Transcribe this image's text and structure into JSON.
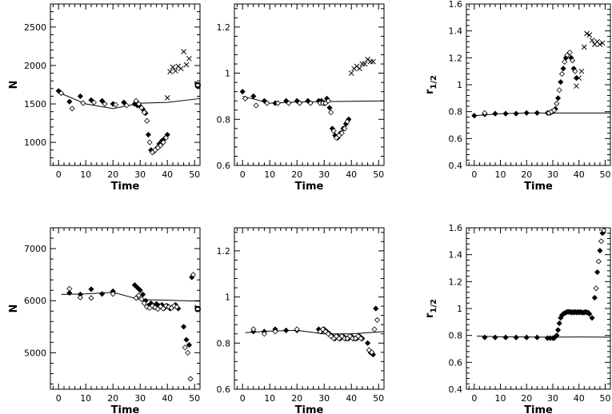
{
  "chart_data": [
    {
      "type": "scatter",
      "xlabel": "Time",
      "ylabel": "N",
      "xlim": [
        -3,
        52
      ],
      "ylim": [
        700,
        2800
      ],
      "xticks": [
        0,
        10,
        20,
        30,
        40,
        50
      ],
      "yticks": [
        1000,
        1500,
        2000,
        2500
      ],
      "yticklabels": [
        "1000",
        "1500",
        "2000",
        "2500"
      ],
      "series": [
        {
          "marker": "line",
          "x": [
            0,
            10,
            20,
            30,
            40,
            52
          ],
          "y": [
            1650,
            1500,
            1440,
            1510,
            1520,
            1570
          ]
        },
        {
          "marker": "filled-diamond",
          "x": [
            0,
            4,
            8,
            12,
            16,
            20,
            24,
            28,
            29,
            30,
            31,
            32,
            33,
            34,
            35,
            36,
            37,
            38,
            39,
            40
          ],
          "y": [
            1670,
            1530,
            1600,
            1550,
            1540,
            1500,
            1520,
            1500,
            1480,
            1470,
            1430,
            1380,
            1100,
            900,
            880,
            920,
            980,
            1020,
            1050,
            1100
          ]
        },
        {
          "marker": "open-diamond",
          "x": [
            1,
            5,
            9,
            13,
            17,
            21,
            25,
            28.5,
            29.5,
            30.5,
            31.5,
            32.5,
            33.5,
            34.5,
            35.5,
            36.5,
            37.5,
            38.5,
            39.5
          ],
          "y": [
            1640,
            1440,
            1510,
            1520,
            1500,
            1490,
            1480,
            1540,
            1500,
            1450,
            1390,
            1280,
            1000,
            870,
            900,
            930,
            960,
            1000,
            1060
          ]
        },
        {
          "marker": "cross",
          "x": [
            40,
            41,
            42,
            43,
            44,
            45,
            46,
            47,
            48
          ],
          "y": [
            1580,
            1920,
            1980,
            1930,
            1990,
            1960,
            2180,
            2010,
            2090
          ]
        }
      ]
    },
    {
      "type": "scatter",
      "xlabel": "Time",
      "ylabel": "σ",
      "xlim": [
        -3,
        52
      ],
      "ylim": [
        0.6,
        1.3
      ],
      "xticks": [
        0,
        10,
        20,
        30,
        40,
        50
      ],
      "yticks": [
        0.6,
        0.8,
        1,
        1.2
      ],
      "yticklabels": [
        "0.6",
        "0.8",
        "1",
        "1.2"
      ],
      "series": [
        {
          "marker": "line",
          "x": [
            0,
            10,
            20,
            30,
            40,
            52
          ],
          "y": [
            0.9,
            0.87,
            0.875,
            0.877,
            0.878,
            0.88
          ]
        },
        {
          "marker": "filled-diamond",
          "x": [
            0,
            4,
            8,
            12,
            16,
            20,
            24,
            28,
            29,
            30,
            31,
            32,
            33,
            34,
            35,
            36,
            37,
            38,
            39
          ],
          "y": [
            0.92,
            0.9,
            0.88,
            0.87,
            0.88,
            0.88,
            0.88,
            0.88,
            0.88,
            0.87,
            0.89,
            0.85,
            0.76,
            0.73,
            0.72,
            0.74,
            0.76,
            0.78,
            0.8
          ]
        },
        {
          "marker": "open-diamond",
          "x": [
            1,
            5,
            9,
            13,
            17,
            21,
            25,
            28.5,
            29.5,
            30.5,
            31.5,
            32.5,
            33.5,
            34.5,
            35.5,
            36.5,
            37.5,
            38.5
          ],
          "y": [
            0.89,
            0.86,
            0.87,
            0.87,
            0.87,
            0.87,
            0.87,
            0.87,
            0.87,
            0.87,
            0.88,
            0.83,
            0.75,
            0.72,
            0.73,
            0.74,
            0.76,
            0.79
          ]
        },
        {
          "marker": "cross",
          "x": [
            40,
            41,
            42,
            43,
            44,
            45,
            46,
            47,
            48
          ],
          "y": [
            1.0,
            1.02,
            1.03,
            1.02,
            1.04,
            1.04,
            1.06,
            1.05,
            1.05
          ]
        }
      ]
    },
    {
      "type": "scatter",
      "xlabel": "Time",
      "ylabel": "r1/2",
      "xlim": [
        -3,
        52
      ],
      "ylim": [
        0.4,
        1.6
      ],
      "xticks": [
        0,
        10,
        20,
        30,
        40,
        50
      ],
      "yticks": [
        0.4,
        0.6,
        0.8,
        1,
        1.2,
        1.4,
        1.6
      ],
      "yticklabels": [
        "0.4",
        "0.6",
        "0.8",
        "1",
        "1.2",
        "1.4",
        "1.6"
      ],
      "series": [
        {
          "marker": "line",
          "x": [
            0,
            10,
            20,
            30,
            40,
            52
          ],
          "y": [
            0.77,
            0.785,
            0.79,
            0.79,
            0.79,
            0.79
          ]
        },
        {
          "marker": "filled-diamond",
          "x": [
            0,
            4,
            8,
            12,
            16,
            20,
            24,
            28,
            29,
            30,
            31,
            32,
            33,
            34,
            35,
            36,
            37,
            38,
            39
          ],
          "y": [
            0.77,
            0.78,
            0.785,
            0.785,
            0.785,
            0.79,
            0.79,
            0.79,
            0.79,
            0.8,
            0.82,
            0.9,
            1.02,
            1.12,
            1.2,
            1.23,
            1.2,
            1.12,
            1.05
          ]
        },
        {
          "marker": "open-diamond",
          "x": [
            4,
            28.5,
            29.5,
            30.5,
            31.5,
            32.5,
            33.5,
            34.5,
            35.5,
            36.5,
            37.5,
            38.5
          ],
          "y": [
            0.79,
            0.79,
            0.8,
            0.81,
            0.86,
            0.96,
            1.08,
            1.17,
            1.22,
            1.24,
            1.18,
            1.1
          ]
        },
        {
          "marker": "cross",
          "x": [
            39,
            40,
            41,
            42,
            43,
            44,
            45,
            46,
            47,
            48,
            49
          ],
          "y": [
            0.99,
            1.05,
            1.1,
            1.28,
            1.38,
            1.37,
            1.33,
            1.3,
            1.32,
            1.3,
            1.31
          ]
        }
      ]
    },
    {
      "type": "scatter",
      "xlabel": "Time",
      "ylabel": "N",
      "xlim": [
        -3,
        52
      ],
      "ylim": [
        4300,
        7400
      ],
      "xticks": [
        0,
        10,
        20,
        30,
        40,
        50
      ],
      "yticks": [
        5000,
        6000,
        7000
      ],
      "yticklabels": [
        "5000",
        "6000",
        "7000"
      ],
      "series": [
        {
          "marker": "line",
          "x": [
            1,
            10,
            20,
            30,
            40,
            52
          ],
          "y": [
            6120,
            6130,
            6160,
            6020,
            6010,
            5990
          ]
        },
        {
          "marker": "filled-diamond",
          "x": [
            4,
            8,
            12,
            16,
            20,
            28,
            29,
            30,
            31,
            32,
            33,
            34,
            35,
            36,
            37,
            38,
            39,
            40,
            41,
            42,
            43,
            44,
            46,
            47,
            48,
            49
          ],
          "y": [
            6150,
            6120,
            6220,
            6130,
            6180,
            6300,
            6250,
            6200,
            6120,
            6000,
            5900,
            5950,
            5880,
            5940,
            5900,
            5920,
            5860,
            5900,
            5850,
            5880,
            5920,
            5850,
            5500,
            5250,
            5150,
            6450
          ]
        },
        {
          "marker": "open-diamond",
          "x": [
            4,
            8,
            12,
            20,
            28.5,
            29.5,
            30.5,
            31.5,
            32.5,
            33.5,
            34.5,
            35.5,
            36.5,
            37.5,
            38.5,
            39.5,
            40.5,
            41.5,
            42.5,
            43.5,
            46.5,
            47.5,
            48.5,
            49.5
          ],
          "y": [
            6230,
            6060,
            6050,
            6130,
            6050,
            6100,
            6030,
            5950,
            5880,
            5860,
            5900,
            5870,
            5840,
            5890,
            5850,
            5900,
            5880,
            5860,
            5900,
            5880,
            5100,
            5000,
            4500,
            6500
          ]
        }
      ]
    },
    {
      "type": "scatter",
      "xlabel": "Time",
      "ylabel": "σ",
      "xlim": [
        -3,
        52
      ],
      "ylim": [
        0.6,
        1.3
      ],
      "xticks": [
        0,
        10,
        20,
        30,
        40,
        50
      ],
      "yticks": [
        0.6,
        0.8,
        1,
        1.2
      ],
      "yticklabels": [
        "0.6",
        "0.8",
        "1",
        "1.2"
      ],
      "series": [
        {
          "marker": "line",
          "x": [
            1,
            10,
            20,
            30,
            40,
            52
          ],
          "y": [
            0.845,
            0.852,
            0.855,
            0.84,
            0.84,
            0.85
          ]
        },
        {
          "marker": "filled-diamond",
          "x": [
            4,
            8,
            12,
            16,
            20,
            28,
            29,
            30,
            31,
            32,
            33,
            34,
            35,
            36,
            37,
            38,
            39,
            40,
            41,
            42,
            43,
            44,
            46,
            47,
            48,
            49
          ],
          "y": [
            0.85,
            0.85,
            0.86,
            0.855,
            0.855,
            0.86,
            0.85,
            0.86,
            0.85,
            0.84,
            0.83,
            0.82,
            0.83,
            0.82,
            0.83,
            0.82,
            0.82,
            0.83,
            0.82,
            0.82,
            0.83,
            0.82,
            0.8,
            0.76,
            0.75,
            0.95
          ]
        },
        {
          "marker": "open-diamond",
          "x": [
            4,
            8,
            12,
            20,
            28.5,
            29.5,
            30.5,
            31.5,
            32.5,
            33.5,
            34.5,
            35.5,
            36.5,
            37.5,
            38.5,
            39.5,
            40.5,
            41.5,
            42.5,
            43.5,
            46.5,
            47.5,
            48.5,
            49.5
          ],
          "y": [
            0.86,
            0.84,
            0.85,
            0.86,
            0.85,
            0.86,
            0.85,
            0.84,
            0.83,
            0.82,
            0.83,
            0.82,
            0.83,
            0.82,
            0.82,
            0.83,
            0.82,
            0.82,
            0.83,
            0.82,
            0.77,
            0.76,
            0.86,
            0.9
          ]
        }
      ]
    },
    {
      "type": "scatter",
      "xlabel": "Time",
      "ylabel": "r1/2",
      "xlim": [
        -3,
        52
      ],
      "ylim": [
        0.4,
        1.6
      ],
      "xticks": [
        0,
        10,
        20,
        30,
        40,
        50
      ],
      "yticks": [
        0.4,
        0.6,
        0.8,
        1,
        1.2,
        1.4,
        1.6
      ],
      "yticklabels": [
        "0.4",
        "0.6",
        "0.8",
        "1",
        "1.2",
        "1.4",
        "1.6"
      ],
      "series": [
        {
          "marker": "line",
          "x": [
            1,
            10,
            20,
            30,
            40,
            52
          ],
          "y": [
            0.795,
            0.79,
            0.788,
            0.787,
            0.788,
            0.787
          ]
        },
        {
          "marker": "filled-diamond",
          "x": [
            4,
            8,
            12,
            16,
            20,
            24,
            28,
            29,
            30,
            30.5,
            31,
            31.5,
            32,
            32.5,
            33,
            33.5,
            34,
            34.5,
            35,
            35.5,
            36,
            36.5,
            37,
            37.5,
            38,
            38.5,
            39,
            39.5,
            40,
            40.5,
            41,
            41.5,
            42,
            42.5,
            43,
            43.5,
            44,
            45,
            46,
            47,
            48,
            49
          ],
          "y": [
            0.785,
            0.785,
            0.785,
            0.785,
            0.785,
            0.785,
            0.78,
            0.78,
            0.78,
            0.78,
            0.79,
            0.8,
            0.84,
            0.89,
            0.93,
            0.95,
            0.96,
            0.965,
            0.97,
            0.975,
            0.975,
            0.975,
            0.97,
            0.975,
            0.97,
            0.975,
            0.97,
            0.975,
            0.97,
            0.975,
            0.97,
            0.97,
            0.97,
            0.975,
            0.97,
            0.97,
            0.96,
            0.93,
            1.08,
            1.27,
            1.43,
            1.56
          ]
        },
        {
          "marker": "open-diamond",
          "x": [
            46.5,
            47.5,
            48.5,
            49.5
          ],
          "y": [
            1.15,
            1.35,
            1.5,
            1.58
          ]
        }
      ]
    }
  ]
}
